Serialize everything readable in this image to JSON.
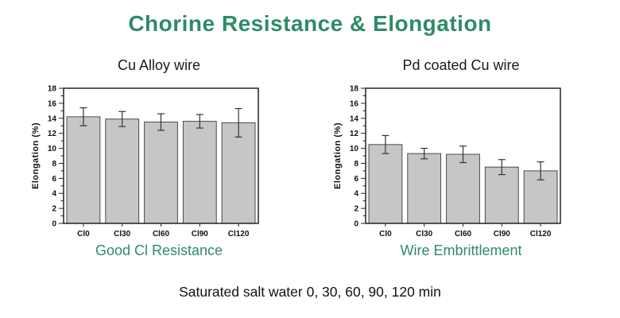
{
  "title": "Chorine Resistance & Elongation",
  "footer": "Saturated salt water 0, 30, 60, 90, 120 min",
  "colors": {
    "accent_green": "#2e8b66",
    "bar_fill": "#c6c6c6",
    "bar_border": "#4a4a4a",
    "axis": "#222222",
    "error_bar": "#333333"
  },
  "chart_data": [
    {
      "type": "bar",
      "title": "Cu Alloy wire",
      "caption": "Good Cl Resistance",
      "xlabel": "",
      "ylabel": "Elongation (%)",
      "ylim": [
        0,
        18
      ],
      "ytick_step": 2,
      "ytick_minor_step": 1,
      "grid": false,
      "legend": "none",
      "categories": [
        "Cl0",
        "Cl30",
        "Cl60",
        "Cl90",
        "Cl120"
      ],
      "values": [
        14.2,
        13.9,
        13.5,
        13.6,
        13.4
      ],
      "errors": [
        1.2,
        1.0,
        1.1,
        0.9,
        1.9
      ]
    },
    {
      "type": "bar",
      "title": "Pd coated Cu wire",
      "caption": "Wire Embrittlement",
      "xlabel": "",
      "ylabel": "Elongation (%)",
      "ylim": [
        0,
        18
      ],
      "ytick_step": 2,
      "ytick_minor_step": 1,
      "grid": false,
      "legend": "none",
      "categories": [
        "Cl0",
        "Cl30",
        "Cl60",
        "Cl90",
        "Cl120"
      ],
      "values": [
        10.5,
        9.3,
        9.2,
        7.5,
        7.0
      ],
      "errors": [
        1.2,
        0.7,
        1.1,
        1.0,
        1.2
      ]
    }
  ]
}
